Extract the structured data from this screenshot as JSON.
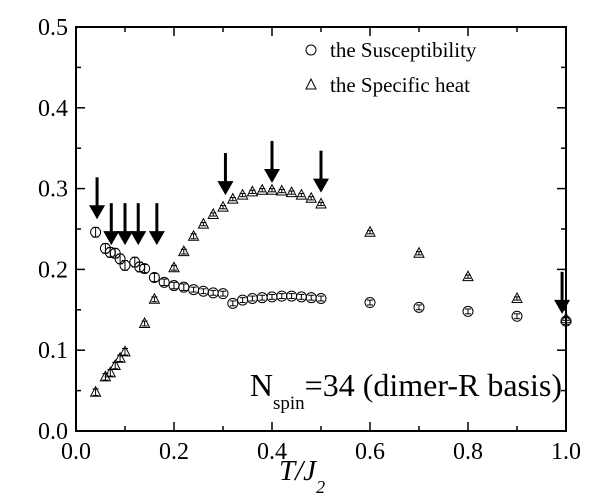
{
  "chart_data": {
    "type": "scatter",
    "xlim": [
      0.0,
      1.0
    ],
    "ylim": [
      0.0,
      0.5
    ],
    "xticks": [
      "0.0",
      "0.2",
      "0.4",
      "0.6",
      "0.8",
      "1.0"
    ],
    "yticks": [
      "0.0",
      "0.1",
      "0.2",
      "0.3",
      "0.4",
      "0.5"
    ],
    "xlabel": "T/J",
    "xlabel_sub": "2",
    "legend_position": "top-right",
    "annotation": {
      "prefix": "N",
      "subscript": "spin",
      "suffix": "=34 (dimer-R basis)"
    },
    "series": [
      {
        "name": "the Susceptibility",
        "marker": "circle",
        "x": [
          0.04,
          0.06,
          0.07,
          0.08,
          0.09,
          0.1,
          0.12,
          0.13,
          0.14,
          0.16,
          0.18,
          0.2,
          0.22,
          0.24,
          0.26,
          0.28,
          0.3,
          0.32,
          0.34,
          0.36,
          0.38,
          0.4,
          0.42,
          0.44,
          0.46,
          0.48,
          0.5,
          0.6,
          0.7,
          0.8,
          0.9,
          1.0
        ],
        "y": [
          0.246,
          0.226,
          0.221,
          0.22,
          0.213,
          0.205,
          0.209,
          0.203,
          0.201,
          0.19,
          0.184,
          0.18,
          0.178,
          0.175,
          0.173,
          0.171,
          0.17,
          0.158,
          0.162,
          0.164,
          0.165,
          0.166,
          0.167,
          0.167,
          0.166,
          0.165,
          0.164,
          0.159,
          0.153,
          0.148,
          0.142,
          0.136
        ],
        "err": [
          0.006,
          0.006,
          0.006,
          0.006,
          0.006,
          0.006,
          0.006,
          0.006,
          0.005,
          0.005,
          0.004,
          0.004,
          0.004,
          0.003,
          0.003,
          0.003,
          0.003,
          0.003,
          0.003,
          0.003,
          0.003,
          0.003,
          0.003,
          0.003,
          0.003,
          0.003,
          0.003,
          0.003,
          0.003,
          0.003,
          0.003,
          0.004
        ]
      },
      {
        "name": "the Specific heat",
        "marker": "triangle",
        "x": [
          0.04,
          0.06,
          0.07,
          0.08,
          0.09,
          0.1,
          0.14,
          0.16,
          0.2,
          0.22,
          0.24,
          0.26,
          0.28,
          0.3,
          0.32,
          0.34,
          0.36,
          0.38,
          0.4,
          0.42,
          0.44,
          0.46,
          0.48,
          0.5,
          0.6,
          0.7,
          0.8,
          0.9,
          1.0
        ],
        "y": [
          0.048,
          0.067,
          0.072,
          0.081,
          0.09,
          0.098,
          0.133,
          0.163,
          0.202,
          0.222,
          0.241,
          0.256,
          0.268,
          0.277,
          0.287,
          0.292,
          0.296,
          0.298,
          0.298,
          0.297,
          0.295,
          0.292,
          0.288,
          0.281,
          0.246,
          0.22,
          0.191,
          0.164,
          0.139
        ],
        "err": [
          0.004,
          0.004,
          0.004,
          0.004,
          0.004,
          0.004,
          0.003,
          0.003,
          0.003,
          0.003,
          0.003,
          0.002,
          0.002,
          0.002,
          0.002,
          0.002,
          0.002,
          0.002,
          0.002,
          0.002,
          0.002,
          0.002,
          0.002,
          0.002,
          0.002,
          0.002,
          0.002,
          0.002,
          0.002
        ]
      }
    ],
    "arrows": [
      {
        "x": 0.043,
        "y": 0.262
      },
      {
        "x": 0.072,
        "y": 0.23
      },
      {
        "x": 0.1,
        "y": 0.23
      },
      {
        "x": 0.127,
        "y": 0.23
      },
      {
        "x": 0.165,
        "y": 0.23
      },
      {
        "x": 0.305,
        "y": 0.292
      },
      {
        "x": 0.4,
        "y": 0.307
      },
      {
        "x": 0.5,
        "y": 0.295
      },
      {
        "x": 0.992,
        "y": 0.145
      }
    ]
  }
}
